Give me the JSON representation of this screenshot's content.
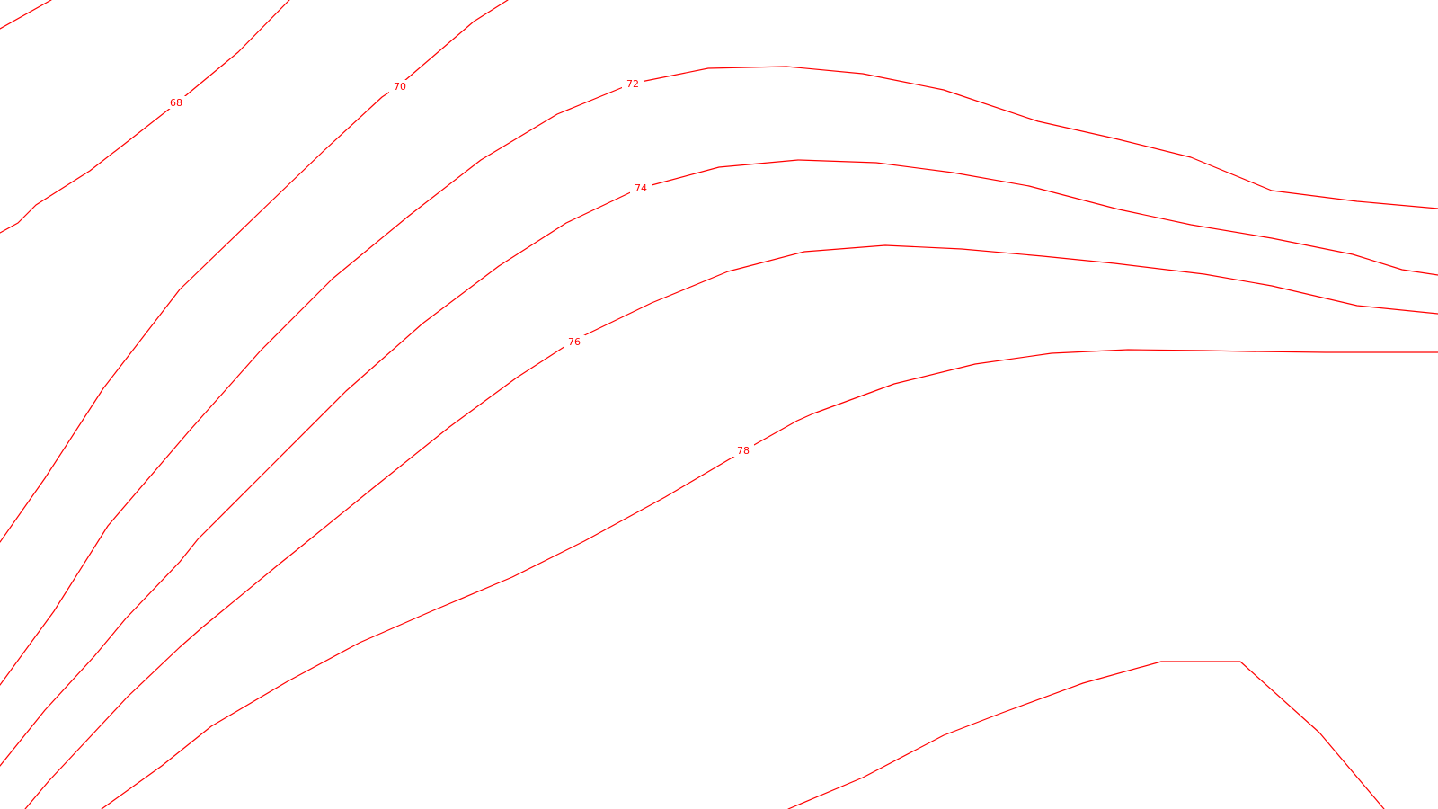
{
  "map": {
    "line_color": "#ff0000",
    "background_color": "#ffffff",
    "contours": [
      {
        "id": "partial-top-left",
        "label": ""
      },
      {
        "id": "68",
        "label": "68"
      },
      {
        "id": "70",
        "label": "70"
      },
      {
        "id": "72",
        "label": "72"
      },
      {
        "id": "74",
        "label": "74"
      },
      {
        "id": "76",
        "label": "76"
      },
      {
        "id": "78",
        "label": "78"
      },
      {
        "id": "partial-bottom-right",
        "label": ""
      }
    ]
  }
}
